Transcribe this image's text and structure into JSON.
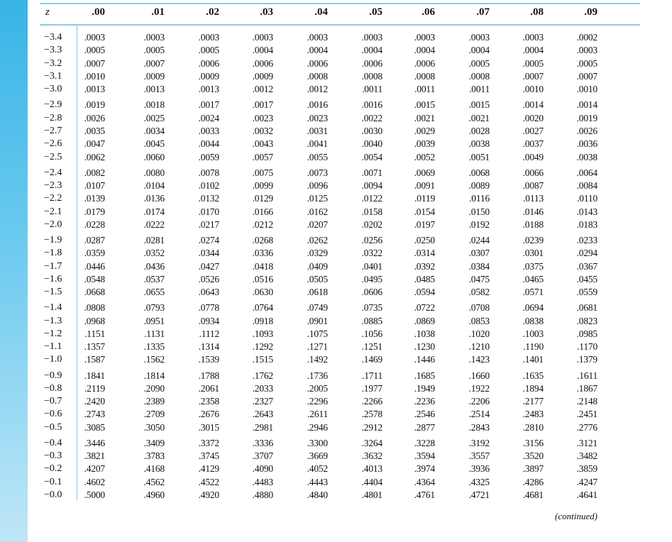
{
  "table": {
    "z_header": "z",
    "columns": [
      ".00",
      ".01",
      ".02",
      ".03",
      ".04",
      ".05",
      ".06",
      ".07",
      ".08",
      ".09"
    ],
    "rows": [
      {
        "z": "−3.4",
        "values": [
          ".0003",
          ".0003",
          ".0003",
          ".0003",
          ".0003",
          ".0003",
          ".0003",
          ".0003",
          ".0003",
          ".0002"
        ]
      },
      {
        "z": "−3.3",
        "values": [
          ".0005",
          ".0005",
          ".0005",
          ".0004",
          ".0004",
          ".0004",
          ".0004",
          ".0004",
          ".0004",
          ".0003"
        ]
      },
      {
        "z": "−3.2",
        "values": [
          ".0007",
          ".0007",
          ".0006",
          ".0006",
          ".0006",
          ".0006",
          ".0006",
          ".0005",
          ".0005",
          ".0005"
        ]
      },
      {
        "z": "−3.1",
        "values": [
          ".0010",
          ".0009",
          ".0009",
          ".0009",
          ".0008",
          ".0008",
          ".0008",
          ".0008",
          ".0007",
          ".0007"
        ]
      },
      {
        "z": "−3.0",
        "values": [
          ".0013",
          ".0013",
          ".0013",
          ".0012",
          ".0012",
          ".0011",
          ".0011",
          ".0011",
          ".0010",
          ".0010"
        ]
      },
      {
        "z": "−2.9",
        "values": [
          ".0019",
          ".0018",
          ".0017",
          ".0017",
          ".0016",
          ".0016",
          ".0015",
          ".0015",
          ".0014",
          ".0014"
        ]
      },
      {
        "z": "−2.8",
        "values": [
          ".0026",
          ".0025",
          ".0024",
          ".0023",
          ".0023",
          ".0022",
          ".0021",
          ".0021",
          ".0020",
          ".0019"
        ]
      },
      {
        "z": "−2.7",
        "values": [
          ".0035",
          ".0034",
          ".0033",
          ".0032",
          ".0031",
          ".0030",
          ".0029",
          ".0028",
          ".0027",
          ".0026"
        ]
      },
      {
        "z": "−2.6",
        "values": [
          ".0047",
          ".0045",
          ".0044",
          ".0043",
          ".0041",
          ".0040",
          ".0039",
          ".0038",
          ".0037",
          ".0036"
        ]
      },
      {
        "z": "−2.5",
        "values": [
          ".0062",
          ".0060",
          ".0059",
          ".0057",
          ".0055",
          ".0054",
          ".0052",
          ".0051",
          ".0049",
          ".0038"
        ]
      },
      {
        "z": "−2.4",
        "values": [
          ".0082",
          ".0080",
          ".0078",
          ".0075",
          ".0073",
          ".0071",
          ".0069",
          ".0068",
          ".0066",
          ".0064"
        ]
      },
      {
        "z": "−2.3",
        "values": [
          ".0107",
          ".0104",
          ".0102",
          ".0099",
          ".0096",
          ".0094",
          ".0091",
          ".0089",
          ".0087",
          ".0084"
        ]
      },
      {
        "z": "−2.2",
        "values": [
          ".0139",
          ".0136",
          ".0132",
          ".0129",
          ".0125",
          ".0122",
          ".0119",
          ".0116",
          ".0113",
          ".0110"
        ]
      },
      {
        "z": "−2.1",
        "values": [
          ".0179",
          ".0174",
          ".0170",
          ".0166",
          ".0162",
          ".0158",
          ".0154",
          ".0150",
          ".0146",
          ".0143"
        ]
      },
      {
        "z": "−2.0",
        "values": [
          ".0228",
          ".0222",
          ".0217",
          ".0212",
          ".0207",
          ".0202",
          ".0197",
          ".0192",
          ".0188",
          ".0183"
        ]
      },
      {
        "z": "−1.9",
        "values": [
          ".0287",
          ".0281",
          ".0274",
          ".0268",
          ".0262",
          ".0256",
          ".0250",
          ".0244",
          ".0239",
          ".0233"
        ]
      },
      {
        "z": "−1.8",
        "values": [
          ".0359",
          ".0352",
          ".0344",
          ".0336",
          ".0329",
          ".0322",
          ".0314",
          ".0307",
          ".0301",
          ".0294"
        ]
      },
      {
        "z": "−1.7",
        "values": [
          ".0446",
          ".0436",
          ".0427",
          ".0418",
          ".0409",
          ".0401",
          ".0392",
          ".0384",
          ".0375",
          ".0367"
        ]
      },
      {
        "z": "−1.6",
        "values": [
          ".0548",
          ".0537",
          ".0526",
          ".0516",
          ".0505",
          ".0495",
          ".0485",
          ".0475",
          ".0465",
          ".0455"
        ]
      },
      {
        "z": "−1.5",
        "values": [
          ".0668",
          ".0655",
          ".0643",
          ".0630",
          ".0618",
          ".0606",
          ".0594",
          ".0582",
          ".0571",
          ".0559"
        ]
      },
      {
        "z": "−1.4",
        "values": [
          ".0808",
          ".0793",
          ".0778",
          ".0764",
          ".0749",
          ".0735",
          ".0722",
          ".0708",
          ".0694",
          ".0681"
        ]
      },
      {
        "z": "−1.3",
        "values": [
          ".0968",
          ".0951",
          ".0934",
          ".0918",
          ".0901",
          ".0885",
          ".0869",
          ".0853",
          ".0838",
          ".0823"
        ]
      },
      {
        "z": "−1.2",
        "values": [
          ".1151",
          ".1131",
          ".1112",
          ".1093",
          ".1075",
          ".1056",
          ".1038",
          ".1020",
          ".1003",
          ".0985"
        ]
      },
      {
        "z": "−1.1",
        "values": [
          ".1357",
          ".1335",
          ".1314",
          ".1292",
          ".1271",
          ".1251",
          ".1230",
          ".1210",
          ".1190",
          ".1170"
        ]
      },
      {
        "z": "−1.0",
        "values": [
          ".1587",
          ".1562",
          ".1539",
          ".1515",
          ".1492",
          ".1469",
          ".1446",
          ".1423",
          ".1401",
          ".1379"
        ]
      },
      {
        "z": "−0.9",
        "values": [
          ".1841",
          ".1814",
          ".1788",
          ".1762",
          ".1736",
          ".1711",
          ".1685",
          ".1660",
          ".1635",
          ".1611"
        ]
      },
      {
        "z": "−0.8",
        "values": [
          ".2119",
          ".2090",
          ".2061",
          ".2033",
          ".2005",
          ".1977",
          ".1949",
          ".1922",
          ".1894",
          ".1867"
        ]
      },
      {
        "z": "−0.7",
        "values": [
          ".2420",
          ".2389",
          ".2358",
          ".2327",
          ".2296",
          ".2266",
          ".2236",
          ".2206",
          ".2177",
          ".2148"
        ]
      },
      {
        "z": "−0.6",
        "values": [
          ".2743",
          ".2709",
          ".2676",
          ".2643",
          ".2611",
          ".2578",
          ".2546",
          ".2514",
          ".2483",
          ".2451"
        ]
      },
      {
        "z": "−0.5",
        "values": [
          ".3085",
          ".3050",
          ".3015",
          ".2981",
          ".2946",
          ".2912",
          ".2877",
          ".2843",
          ".2810",
          ".2776"
        ]
      },
      {
        "z": "−0.4",
        "values": [
          ".3446",
          ".3409",
          ".3372",
          ".3336",
          ".3300",
          ".3264",
          ".3228",
          ".3192",
          ".3156",
          ".3121"
        ]
      },
      {
        "z": "−0.3",
        "values": [
          ".3821",
          ".3783",
          ".3745",
          ".3707",
          ".3669",
          ".3632",
          ".3594",
          ".3557",
          ".3520",
          ".3482"
        ]
      },
      {
        "z": "−0.2",
        "values": [
          ".4207",
          ".4168",
          ".4129",
          ".4090",
          ".4052",
          ".4013",
          ".3974",
          ".3936",
          ".3897",
          ".3859"
        ]
      },
      {
        "z": "−0.1",
        "values": [
          ".4602",
          ".4562",
          ".4522",
          ".4483",
          ".4443",
          ".4404",
          ".4364",
          ".4325",
          ".4286",
          ".4247"
        ]
      },
      {
        "z": "−0.0",
        "values": [
          ".5000",
          ".4960",
          ".4920",
          ".4880",
          ".4840",
          ".4801",
          ".4761",
          ".4721",
          ".4681",
          ".4641"
        ]
      }
    ]
  },
  "footer": {
    "continued": "(continued)"
  },
  "colors": {
    "side_band": "#38b4e7",
    "rules": "#8ccbe6"
  }
}
